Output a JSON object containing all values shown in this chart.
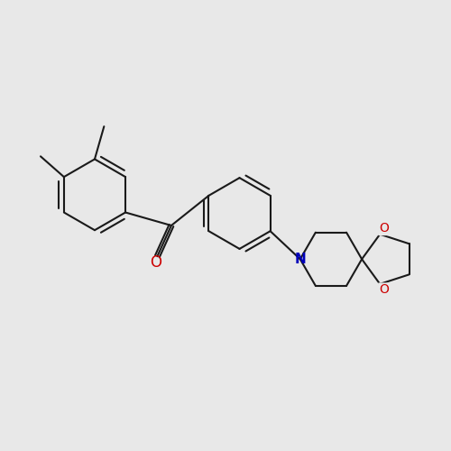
{
  "bg_color": "#e8e8e8",
  "bond_color": "#1a1a1a",
  "O_color": "#cc0000",
  "N_color": "#0000bb",
  "lw": 1.5,
  "figsize": [
    5.0,
    5.0
  ],
  "dpi": 100,
  "xlim": [
    -2.5,
    2.3
  ],
  "ylim": [
    -1.3,
    1.4
  ]
}
